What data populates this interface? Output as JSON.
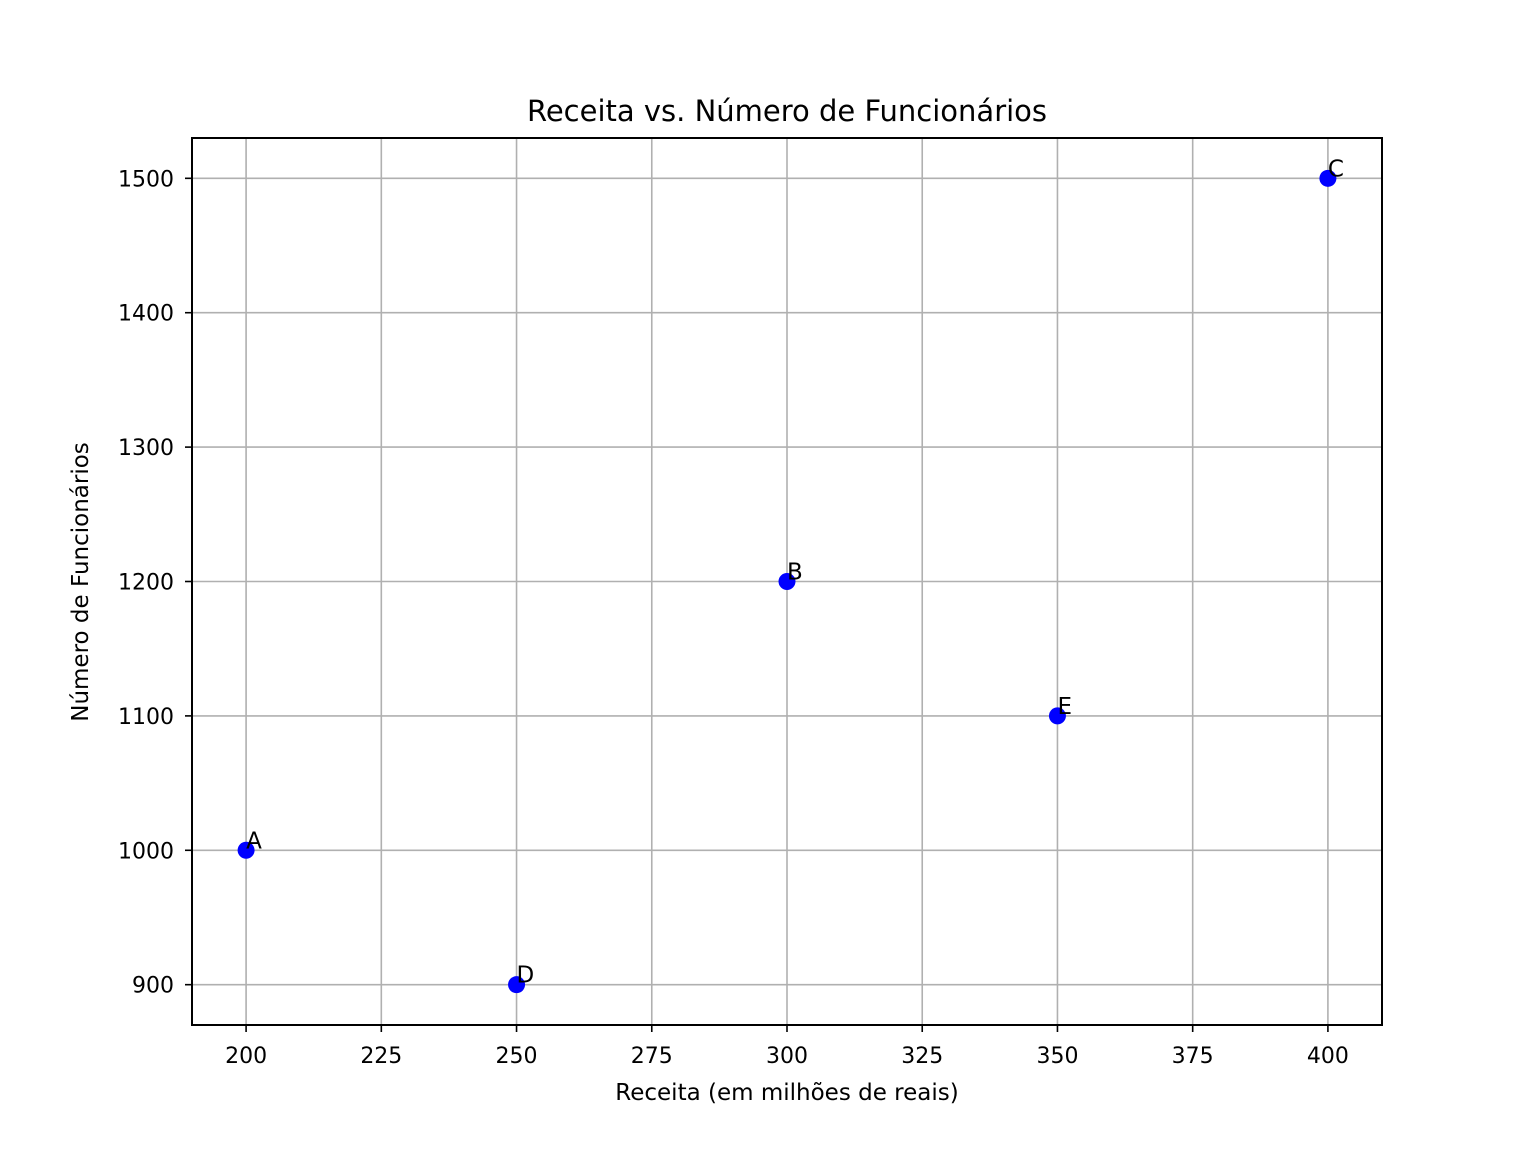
{
  "chart_data": {
    "type": "scatter",
    "title": "Receita vs. Número de Funcionários",
    "xlabel": "Receita (em milhões de reais)",
    "ylabel": "Número de Funcionários",
    "xlim": [
      190,
      410
    ],
    "ylim": [
      870,
      1530
    ],
    "xticks": [
      200,
      225,
      250,
      275,
      300,
      325,
      350,
      375,
      400
    ],
    "yticks": [
      900,
      1000,
      1100,
      1200,
      1300,
      1400,
      1500
    ],
    "grid": true,
    "marker_color": "#0000ff",
    "points": [
      {
        "label": "A",
        "x": 200,
        "y": 1000
      },
      {
        "label": "B",
        "x": 300,
        "y": 1200
      },
      {
        "label": "C",
        "x": 400,
        "y": 1500
      },
      {
        "label": "D",
        "x": 250,
        "y": 900
      },
      {
        "label": "E",
        "x": 350,
        "y": 1100
      }
    ]
  }
}
